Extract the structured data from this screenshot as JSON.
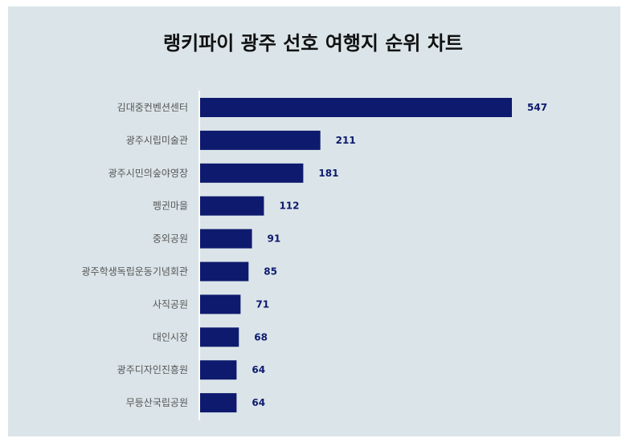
{
  "chart_data": {
    "type": "bar",
    "orientation": "horizontal",
    "title": "랭키파이 광주 선호 여행지 순위 차트",
    "categories": [
      "김대중컨벤션센터",
      "광주시립미술관",
      "광주시민의숲야영장",
      "펭귄마을",
      "중외공원",
      "광주학생독립운동기념회관",
      "사직공원",
      "대인시장",
      "광주디자인진흥원",
      "무등산국립공원"
    ],
    "values": [
      547,
      211,
      181,
      112,
      91,
      85,
      71,
      68,
      64,
      64
    ],
    "xlim": [
      0,
      547
    ],
    "grid": false,
    "legend": "none",
    "bar_color": "#0e1a6e",
    "background_color": "#dbe5e9"
  }
}
